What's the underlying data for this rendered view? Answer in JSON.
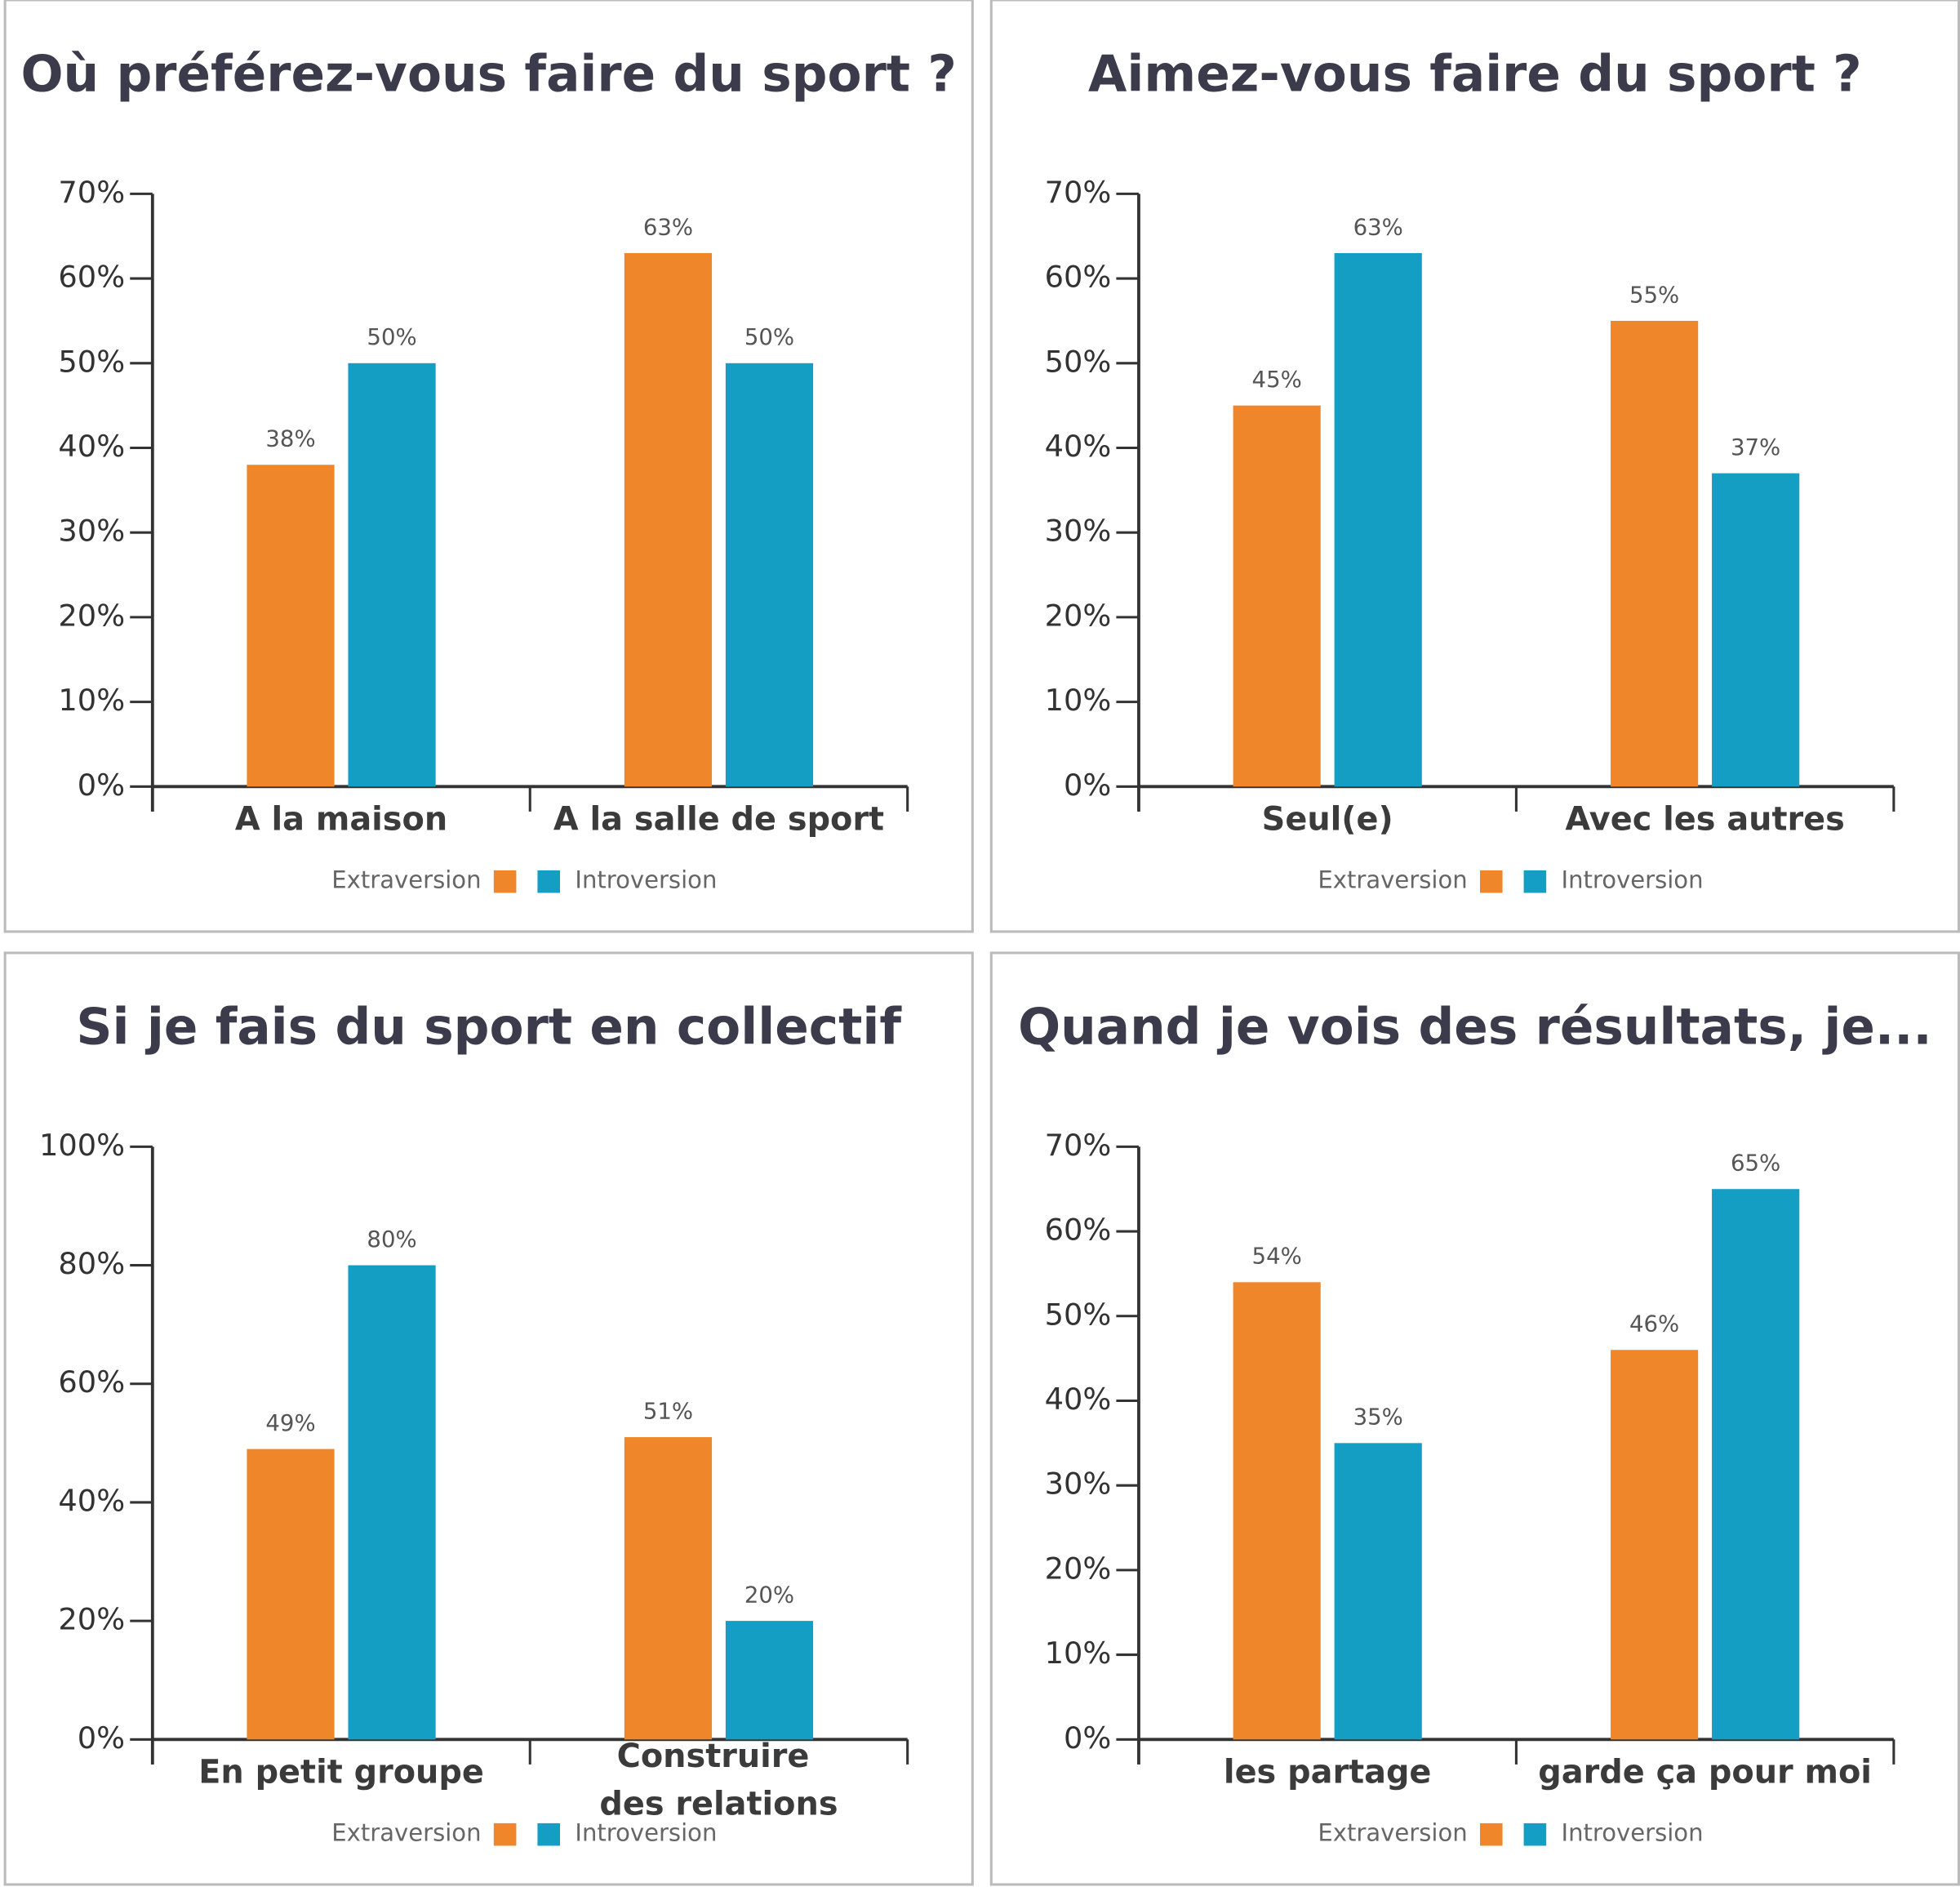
{
  "chart_data": [
    {
      "type": "bar",
      "title": "Où préférez-vous faire du sport ?",
      "categories": [
        "A la maison",
        "A la salle de sport"
      ],
      "series": [
        {
          "name": "Extraversion",
          "color": "#f0862a",
          "values": [
            38,
            63
          ],
          "value_labels": [
            "38%",
            "63%"
          ]
        },
        {
          "name": "Introversion",
          "color": "#149ec4",
          "values": [
            50,
            50
          ],
          "value_labels": [
            "50%",
            "50%"
          ]
        }
      ],
      "ylim": [
        0,
        70
      ],
      "yticks": [
        {
          "value": 0,
          "label": "0%"
        },
        {
          "value": 10,
          "label": "10%"
        },
        {
          "value": 20,
          "label": "20%"
        },
        {
          "value": 30,
          "label": "30%"
        },
        {
          "value": 40,
          "label": "40%"
        },
        {
          "value": 50,
          "label": "50%"
        },
        {
          "value": 60,
          "label": "60%"
        },
        {
          "value": 70,
          "label": "70%"
        }
      ]
    },
    {
      "type": "bar",
      "title": "Aimez-vous faire du sport ?",
      "categories": [
        "Seul(e)",
        "Avec les autres"
      ],
      "series": [
        {
          "name": "Extraversion",
          "color": "#f0862a",
          "values": [
            45,
            55
          ],
          "value_labels": [
            "45%",
            "55%"
          ]
        },
        {
          "name": "Introversion",
          "color": "#149ec4",
          "values": [
            63,
            37
          ],
          "value_labels": [
            "63%",
            "37%"
          ]
        }
      ],
      "ylim": [
        0,
        70
      ],
      "yticks": [
        {
          "value": 0,
          "label": "0%"
        },
        {
          "value": 10,
          "label": "10%"
        },
        {
          "value": 20,
          "label": "20%"
        },
        {
          "value": 30,
          "label": "30%"
        },
        {
          "value": 40,
          "label": "40%"
        },
        {
          "value": 50,
          "label": "50%"
        },
        {
          "value": 60,
          "label": "60%"
        },
        {
          "value": 70,
          "label": "70%"
        }
      ]
    },
    {
      "type": "bar",
      "title": "Si je fais du sport en collectif",
      "categories": [
        "En petit groupe",
        "Construire des relations"
      ],
      "series": [
        {
          "name": "Extraversion",
          "color": "#f0862a",
          "values": [
            49,
            51
          ],
          "value_labels": [
            "49%",
            "51%"
          ]
        },
        {
          "name": "Introversion",
          "color": "#149ec4",
          "values": [
            80,
            20
          ],
          "value_labels": [
            "80%",
            "20%"
          ]
        }
      ],
      "ylim": [
        0,
        100
      ],
      "yticks": [
        {
          "value": 0,
          "label": "0%"
        },
        {
          "value": 20,
          "label": "20%"
        },
        {
          "value": 40,
          "label": "40%"
        },
        {
          "value": 60,
          "label": "60%"
        },
        {
          "value": 80,
          "label": "80%"
        },
        {
          "value": 100,
          "label": "100%"
        }
      ]
    },
    {
      "type": "bar",
      "title": "Quand je vois des résultats, je...",
      "categories": [
        "les partage",
        "garde ça pour moi"
      ],
      "series": [
        {
          "name": "Extraversion",
          "color": "#f0862a",
          "values": [
            54,
            46
          ],
          "value_labels": [
            "54%",
            "46%"
          ]
        },
        {
          "name": "Introversion",
          "color": "#149ec4",
          "values": [
            35,
            65
          ],
          "value_labels": [
            "35%",
            "65%"
          ]
        }
      ],
      "ylim": [
        0,
        70
      ],
      "yticks": [
        {
          "value": 0,
          "label": "0%"
        },
        {
          "value": 10,
          "label": "10%"
        },
        {
          "value": 20,
          "label": "20%"
        },
        {
          "value": 30,
          "label": "30%"
        },
        {
          "value": 40,
          "label": "40%"
        },
        {
          "value": 50,
          "label": "50%"
        },
        {
          "value": 60,
          "label": "60%"
        },
        {
          "value": 70,
          "label": "70%"
        }
      ]
    }
  ]
}
